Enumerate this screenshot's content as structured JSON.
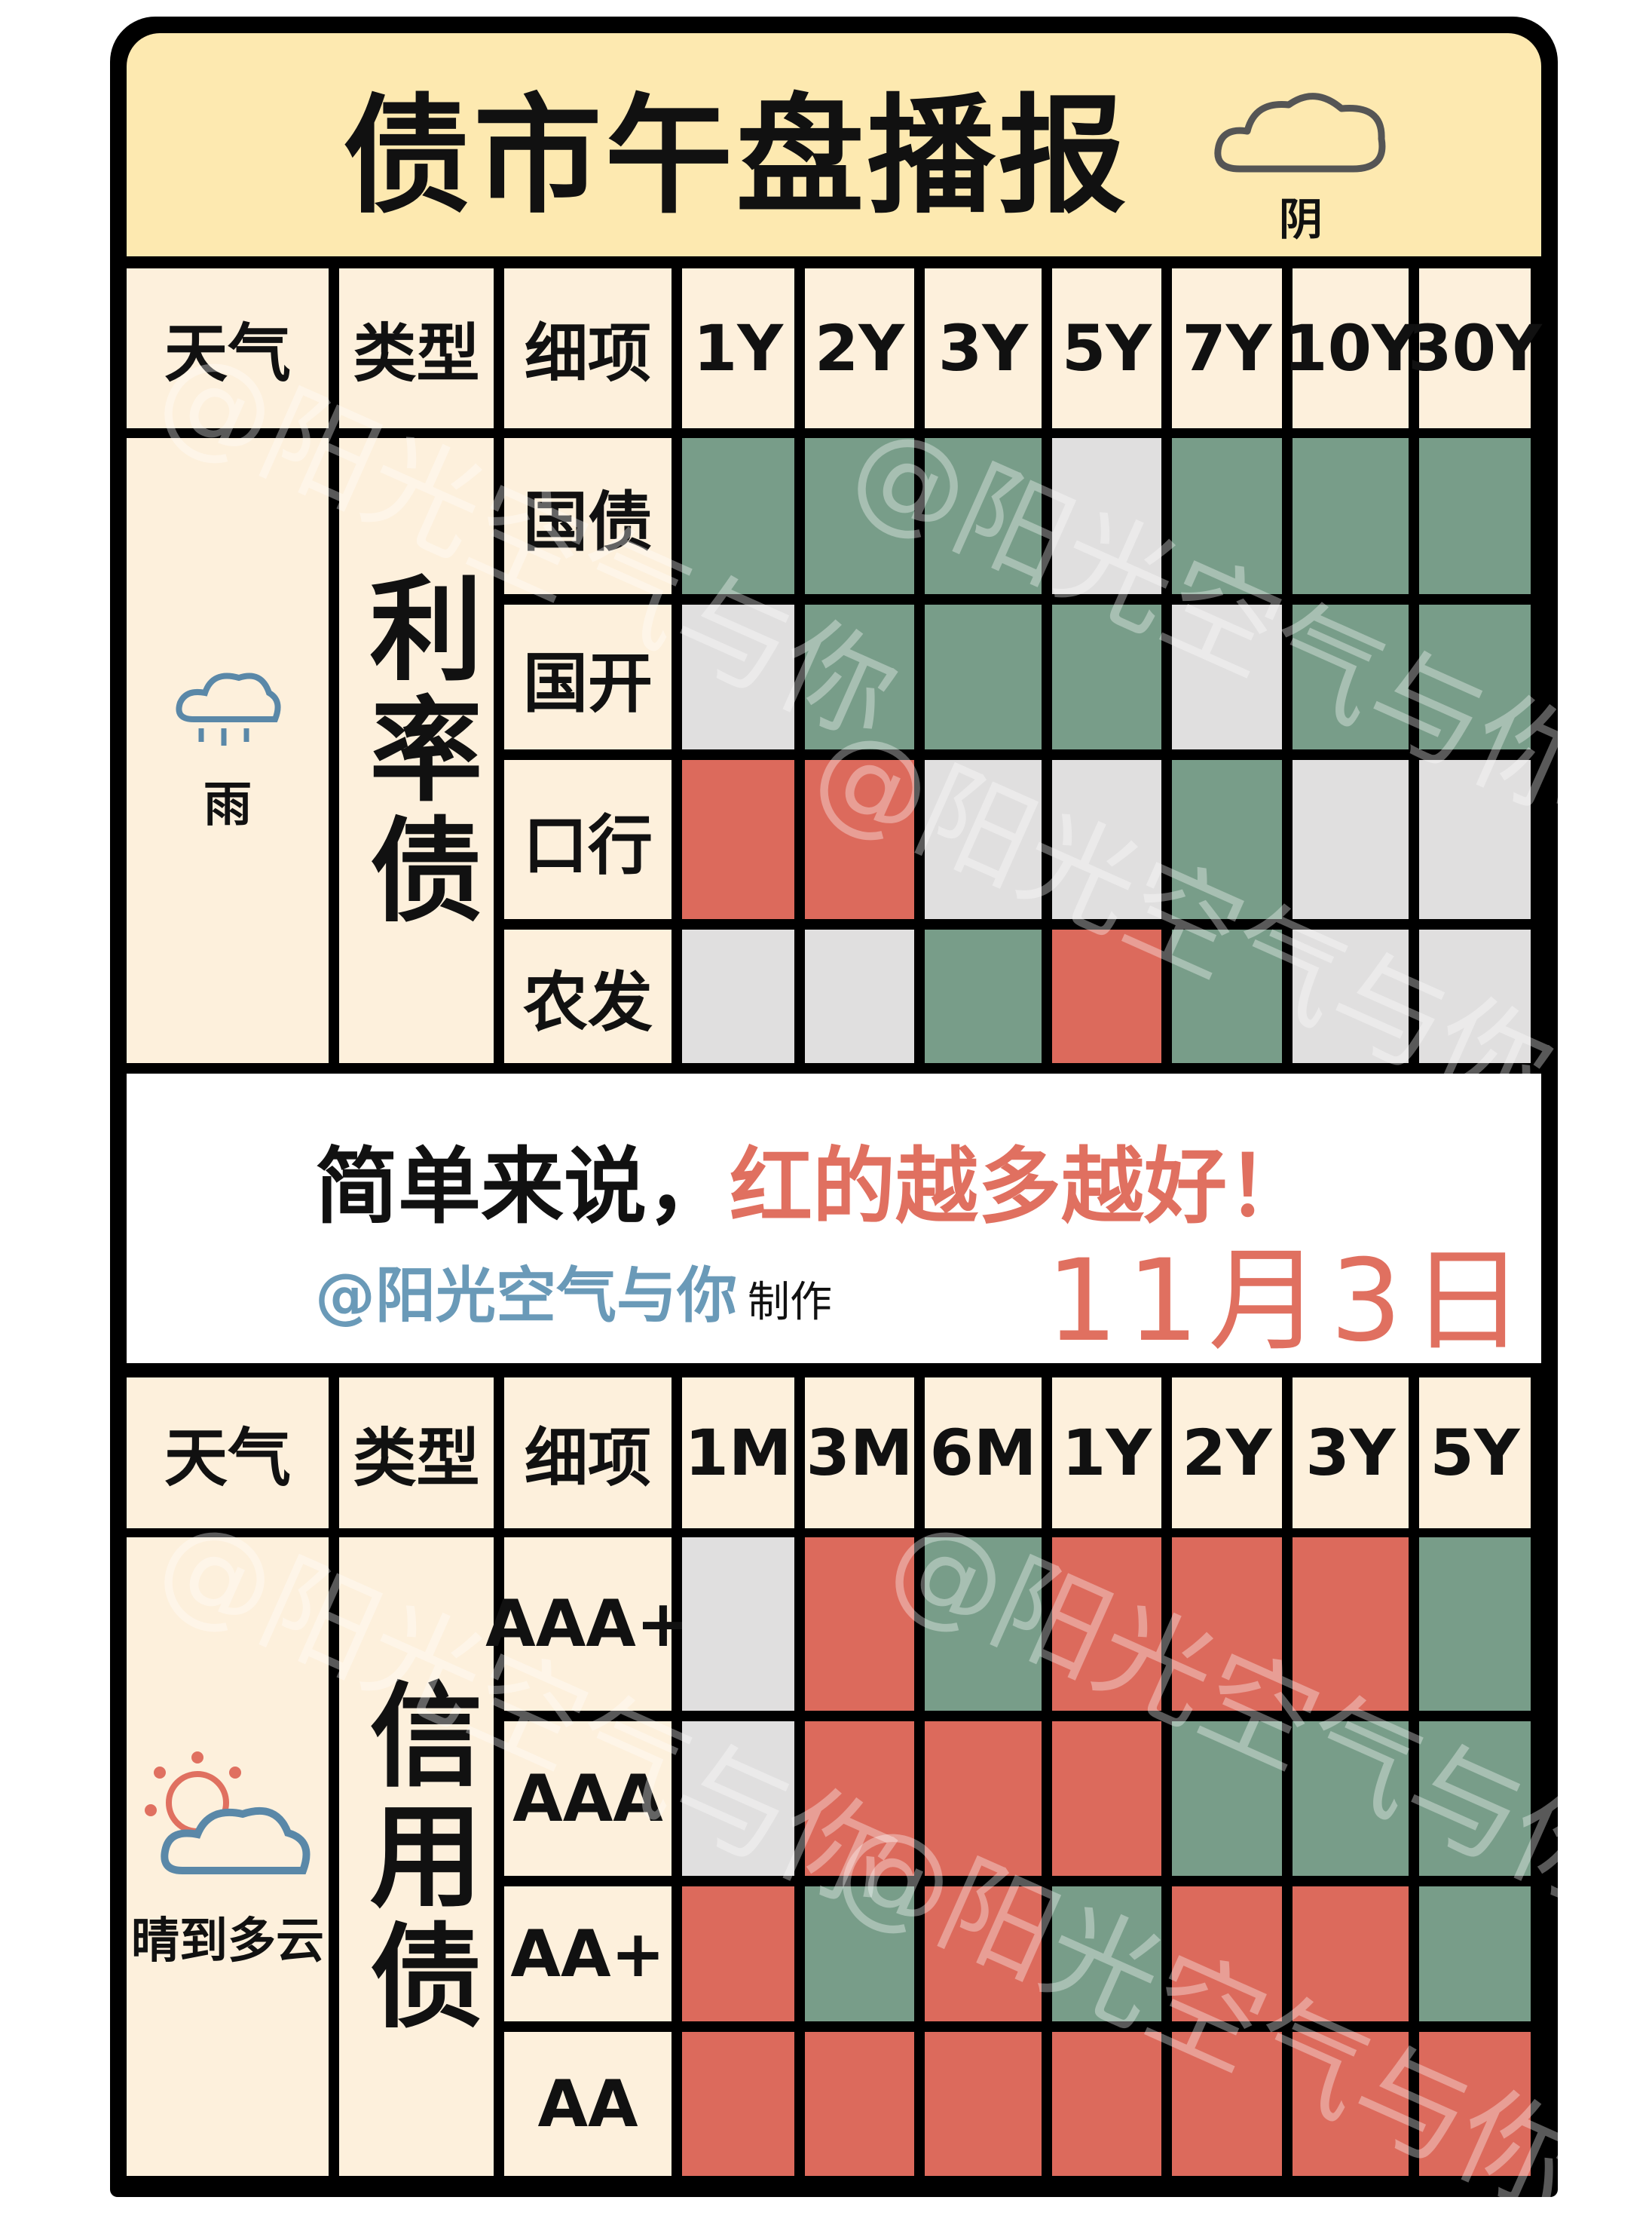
{
  "title": "债市午盘播报",
  "title_weather": {
    "icon": "cloud-icon",
    "label": "阴"
  },
  "colors": {
    "green": "#789d89",
    "red": "#dc6a5c",
    "gray": "#e0dfdf",
    "cream": "#fdf0dc",
    "title_bg": "#fde9b0"
  },
  "rate_table": {
    "headers": [
      "天气",
      "类型",
      "细项",
      "1Y",
      "2Y",
      "3Y",
      "5Y",
      "7Y",
      "10Y",
      "30Y"
    ],
    "weather": {
      "icon": "rain-cloud-icon",
      "label": "雨"
    },
    "type": "利率债",
    "rows": [
      {
        "label": "国债",
        "cells": [
          "green",
          "green",
          "green",
          "gray",
          "green",
          "green",
          "green"
        ]
      },
      {
        "label": "国开",
        "cells": [
          "gray",
          "green",
          "green",
          "green",
          "gray",
          "green",
          "green"
        ]
      },
      {
        "label": "口行",
        "cells": [
          "red",
          "red",
          "gray",
          "gray",
          "green",
          "gray",
          "gray"
        ]
      },
      {
        "label": "农发",
        "cells": [
          "gray",
          "gray",
          "green",
          "red",
          "green",
          "gray",
          "gray"
        ]
      }
    ]
  },
  "summary": {
    "prefix": "简单来说，",
    "highlight": "红的越多越好！",
    "author": "@阳光空气与你",
    "made": "制作",
    "date": "11月3日"
  },
  "credit_table": {
    "headers": [
      "天气",
      "类型",
      "细项",
      "1M",
      "3M",
      "6M",
      "1Y",
      "2Y",
      "3Y",
      "5Y"
    ],
    "weather": {
      "icon": "sun-behind-cloud-icon",
      "label": "晴到多云"
    },
    "type": "信用债",
    "rows": [
      {
        "label": "AAA+",
        "cells": [
          "gray",
          "red",
          "green",
          "red",
          "red",
          "red",
          "green"
        ]
      },
      {
        "label": "AAA",
        "cells": [
          "gray",
          "red",
          "red",
          "red",
          "green",
          "green",
          "green"
        ]
      },
      {
        "label": "AA+",
        "cells": [
          "red",
          "green",
          "red",
          "green",
          "red",
          "red",
          "green"
        ]
      },
      {
        "label": "AA",
        "cells": [
          "red",
          "red",
          "red",
          "red",
          "red",
          "red",
          "red"
        ]
      }
    ]
  },
  "watermark": "@阳光空气与你"
}
